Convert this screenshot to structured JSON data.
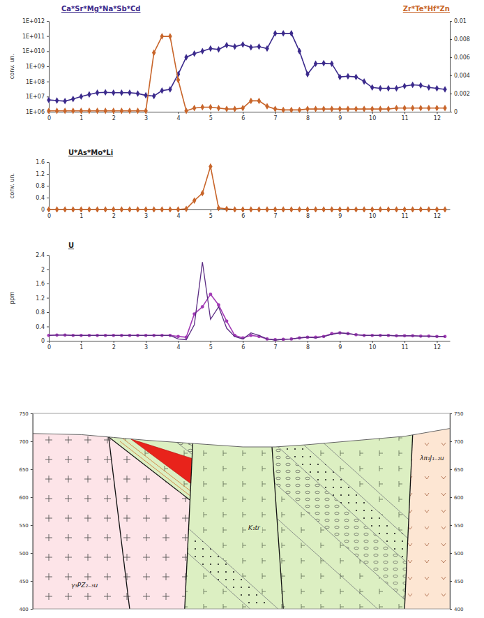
{
  "chart_data": [
    {
      "type": "line",
      "log": "y",
      "ylabel": "conv. un.",
      "x": [
        0,
        0.25,
        0.5,
        0.75,
        1,
        1.25,
        1.5,
        1.75,
        2,
        2.25,
        2.5,
        2.75,
        3,
        3.25,
        3.5,
        3.75,
        4,
        4.25,
        4.5,
        4.75,
        5,
        5.25,
        5.5,
        5.75,
        6,
        6.25,
        6.5,
        6.75,
        7,
        7.25,
        7.5,
        7.75,
        8,
        8.25,
        8.5,
        8.75,
        9,
        9.25,
        9.5,
        9.75,
        10,
        10.25,
        10.5,
        10.75,
        11,
        11.25,
        11.5,
        11.75,
        12,
        12.25
      ],
      "xlim": [
        0,
        12.4
      ],
      "xticks": [
        0,
        1,
        2,
        3,
        4,
        5,
        6,
        7,
        8,
        9,
        10,
        11,
        12
      ],
      "ylim": [
        1000000.0,
        1000000000000.0
      ],
      "yticks": [
        {
          "value": 1000000.0,
          "label": "1E+06"
        },
        {
          "value": 10000000.0,
          "label": "1E+07"
        },
        {
          "value": 100000000.0,
          "label": "1E+08"
        },
        {
          "value": 1000000000.0,
          "label": "1E+09"
        },
        {
          "value": 10000000000.0,
          "label": "1E+010"
        },
        {
          "value": 100000000000.0,
          "label": "1E+011"
        },
        {
          "value": 1000000000000.0,
          "label": "1E+012"
        }
      ],
      "y2lim": [
        0,
        0.01
      ],
      "y2ticks": [
        0,
        0.002,
        0.004,
        0.006,
        0.008,
        0.01
      ],
      "series": [
        {
          "name": "Ca*Sr*Mg*Na*Sb*Cd",
          "color": "#3b2a8c",
          "marker": "diamond",
          "values": [
            6000000.0,
            5500000.0,
            5000000.0,
            7000000.0,
            10000000.0,
            14000000.0,
            18000000.0,
            19000000.0,
            18000000.0,
            18000000.0,
            18000000.0,
            16000000.0,
            12000000.0,
            11000000.0,
            25000000.0,
            30000000.0,
            300000000.0,
            4000000000.0,
            7000000000.0,
            10000000000.0,
            15000000000.0,
            13000000000.0,
            25000000000.0,
            20000000000.0,
            28000000000.0,
            18000000000.0,
            20000000000.0,
            15000000000.0,
            150000000000.0,
            150000000000.0,
            150000000000.0,
            10000000000.0,
            300000000.0,
            1500000000.0,
            1600000000.0,
            1500000000.0,
            200000000.0,
            220000000.0,
            200000000.0,
            100000000.0,
            40000000.0,
            35000000.0,
            35000000.0,
            35000000.0,
            50000000.0,
            60000000.0,
            55000000.0,
            40000000.0,
            35000000.0,
            30000000.0
          ]
        },
        {
          "name": "Zr*Te*Hf*Zn",
          "color": "#c8652a",
          "marker": "diamond",
          "axis": "y2",
          "values": [
            0.0001,
            0.0001,
            0.0001,
            0.0001,
            0.0001,
            0.0001,
            0.0001,
            0.0001,
            0.0001,
            0.0001,
            0.0001,
            0.0001,
            0.0001,
            0.0065,
            0.0083,
            0.0083,
            0.0035,
            0.0001,
            0.0004,
            0.0005,
            0.0005,
            0.0004,
            0.0003,
            0.0003,
            0.0004,
            0.0012,
            0.0012,
            0.0006,
            0.0003,
            0.0002,
            0.0002,
            0.0002,
            0.0003,
            0.0003,
            0.0003,
            0.0003,
            0.0003,
            0.0003,
            0.0003,
            0.0003,
            0.0003,
            0.0003,
            0.0003,
            0.0004,
            0.0004,
            0.0004,
            0.0004,
            0.0004,
            0.0004,
            0.0004
          ]
        }
      ]
    },
    {
      "type": "line",
      "title": "U*As*Mo*Li",
      "ylabel": "conv. un.",
      "x": [
        0,
        0.25,
        0.5,
        0.75,
        1,
        1.25,
        1.5,
        1.75,
        2,
        2.25,
        2.5,
        2.75,
        3,
        3.25,
        3.5,
        3.75,
        4,
        4.25,
        4.5,
        4.75,
        5,
        5.25,
        5.5,
        5.75,
        6,
        6.25,
        6.5,
        6.75,
        7,
        7.25,
        7.5,
        7.75,
        8,
        8.25,
        8.5,
        8.75,
        9,
        9.25,
        9.5,
        9.75,
        10,
        10.25,
        10.5,
        10.75,
        11,
        11.25,
        11.5,
        11.75,
        12,
        12.25
      ],
      "xlim": [
        0,
        12.4
      ],
      "xticks": [
        0,
        1,
        2,
        3,
        4,
        5,
        6,
        7,
        8,
        9,
        10,
        11,
        12
      ],
      "ylim": [
        0,
        1.6
      ],
      "yticks": [
        0,
        0.4,
        0.8,
        1.2,
        1.6
      ],
      "series": [
        {
          "color": "#c8652a",
          "marker": "diamond",
          "values": [
            0,
            0,
            0,
            0,
            0,
            0,
            0,
            0,
            0,
            0,
            0,
            0,
            0,
            0,
            0,
            0,
            0,
            0.02,
            0.3,
            0.55,
            1.45,
            0.05,
            0.02,
            0,
            0,
            0,
            0,
            0,
            0,
            0,
            0,
            0,
            0,
            0,
            0,
            0,
            0,
            0,
            0,
            0,
            0,
            0,
            0,
            0,
            0,
            0,
            0,
            0,
            0,
            0
          ]
        }
      ]
    },
    {
      "type": "line",
      "title": "U",
      "ylabel": "ppm",
      "x": [
        0,
        0.25,
        0.5,
        0.75,
        1,
        1.25,
        1.5,
        1.75,
        2,
        2.25,
        2.5,
        2.75,
        3,
        3.25,
        3.5,
        3.75,
        4,
        4.25,
        4.5,
        4.75,
        5,
        5.25,
        5.5,
        5.75,
        6,
        6.25,
        6.5,
        6.75,
        7,
        7.25,
        7.5,
        7.75,
        8,
        8.25,
        8.5,
        8.75,
        9,
        9.25,
        9.5,
        9.75,
        10,
        10.25,
        10.5,
        10.75,
        11,
        11.25,
        11.5,
        11.75,
        12,
        12.25
      ],
      "xlim": [
        0,
        12.4
      ],
      "xticks": [
        0,
        1,
        2,
        3,
        4,
        5,
        6,
        7,
        8,
        9,
        10,
        11,
        12
      ],
      "ylim": [
        0,
        2.4
      ],
      "yticks": [
        0,
        0.4,
        0.8,
        1.2,
        1.6,
        2,
        2.4
      ],
      "series": [
        {
          "color": "#a23bb5",
          "marker": "circle",
          "values": [
            0.15,
            0.16,
            0.16,
            0.15,
            0.15,
            0.15,
            0.15,
            0.15,
            0.15,
            0.15,
            0.15,
            0.15,
            0.15,
            0.15,
            0.15,
            0.15,
            0.12,
            0.1,
            0.75,
            0.95,
            1.3,
            1.0,
            0.55,
            0.15,
            0.08,
            0.15,
            0.12,
            0.05,
            0.03,
            0.04,
            0.05,
            0.08,
            0.1,
            0.1,
            0.12,
            0.2,
            0.22,
            0.2,
            0.17,
            0.15,
            0.15,
            0.15,
            0.15,
            0.14,
            0.14,
            0.14,
            0.13,
            0.13,
            0.12,
            0.12
          ]
        },
        {
          "color": "#5b2c83",
          "marker": "none",
          "values": [
            0.15,
            0.16,
            0.16,
            0.15,
            0.15,
            0.15,
            0.15,
            0.15,
            0.15,
            0.15,
            0.15,
            0.15,
            0.15,
            0.15,
            0.15,
            0.15,
            0.05,
            0.03,
            0.45,
            2.2,
            0.6,
            0.95,
            0.35,
            0.12,
            0.05,
            0.22,
            0.15,
            0.05,
            0.02,
            0.04,
            0.05,
            0.08,
            0.1,
            0.08,
            0.12,
            0.18,
            0.22,
            0.2,
            0.17,
            0.15,
            0.15,
            0.15,
            0.15,
            0.14,
            0.14,
            0.14,
            0.13,
            0.13,
            0.12,
            0.12
          ]
        }
      ]
    }
  ],
  "section": {
    "ylim": [
      400,
      750
    ],
    "yticks": [
      400,
      450,
      500,
      550,
      600,
      650,
      700,
      750
    ],
    "units": [
      "γ₃PZ₂₋₃u",
      "K₁tr",
      "λπ₁J₁₋₂u"
    ]
  }
}
